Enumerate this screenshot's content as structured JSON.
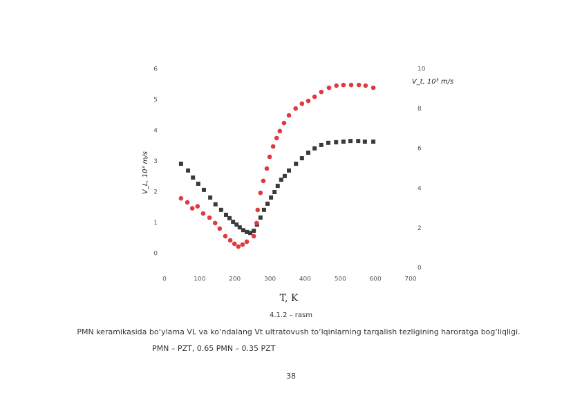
{
  "chart_data": {
    "type": "scatter",
    "xlabel": "T, K",
    "ylabel": "V_L, 10³ m/s",
    "y2label": "V_t, 10³ m/s",
    "xlim": [
      0,
      700
    ],
    "xticks": [
      0,
      100,
      200,
      300,
      400,
      500,
      600,
      700
    ],
    "ylim": [
      0,
      6
    ],
    "yticks": [
      0,
      1,
      2,
      3,
      4,
      5,
      6
    ],
    "y2lim": [
      0,
      10
    ],
    "y2ticks": [
      0,
      2,
      4,
      6,
      8,
      10
    ],
    "series": [
      {
        "color": "#3a3a3a",
        "marker": "square",
        "x": [
          47,
          67,
          81,
          96,
          112,
          130,
          145,
          161,
          175,
          185,
          195,
          205,
          214,
          224,
          234,
          244,
          254,
          263,
          273,
          283,
          293,
          303,
          313,
          322,
          332,
          342,
          354,
          374,
          391,
          409,
          427,
          446,
          466,
          488,
          509,
          529,
          551,
          570,
          594
        ],
        "values": [
          2.92,
          2.7,
          2.47,
          2.27,
          2.07,
          1.82,
          1.6,
          1.42,
          1.26,
          1.15,
          1.03,
          0.94,
          0.85,
          0.76,
          0.7,
          0.67,
          0.74,
          0.94,
          1.17,
          1.42,
          1.62,
          1.82,
          2.0,
          2.2,
          2.4,
          2.52,
          2.7,
          2.92,
          3.1,
          3.28,
          3.42,
          3.53,
          3.6,
          3.62,
          3.64,
          3.66,
          3.66,
          3.64,
          3.64
        ]
      },
      {
        "color": "#e0393e",
        "marker": "circle",
        "axis": "y2",
        "x": [
          47,
          65,
          79,
          94,
          110,
          128,
          144,
          157,
          173,
          187,
          199,
          210,
          222,
          234,
          254,
          262,
          265,
          273,
          281,
          291,
          299,
          309,
          319,
          328,
          340,
          354,
          373,
          391,
          409,
          427,
          446,
          468,
          489,
          509,
          531,
          553,
          572,
          594
        ],
        "values": [
          3.5,
          3.3,
          3.0,
          3.1,
          2.74,
          2.53,
          2.26,
          1.98,
          1.6,
          1.39,
          1.22,
          1.08,
          1.18,
          1.32,
          1.6,
          2.26,
          2.92,
          3.78,
          4.38,
          5.0,
          5.59,
          6.11,
          6.53,
          6.88,
          7.29,
          7.67,
          8.02,
          8.26,
          8.4,
          8.61,
          8.85,
          9.06,
          9.17,
          9.2,
          9.2,
          9.2,
          9.17,
          9.06
        ]
      }
    ]
  },
  "figure_number": "4.1.2 – rasm",
  "caption": "PMN keramikasida bo‘ylama VL va ko‘ndalang Vt ultratovush to‘lqinlarning tarqalish tezligining haroratga bog‘liqligi.",
  "subcaption": "PMN – PZT, 0.65 PMN – 0.35 PZT",
  "page_number": "38"
}
